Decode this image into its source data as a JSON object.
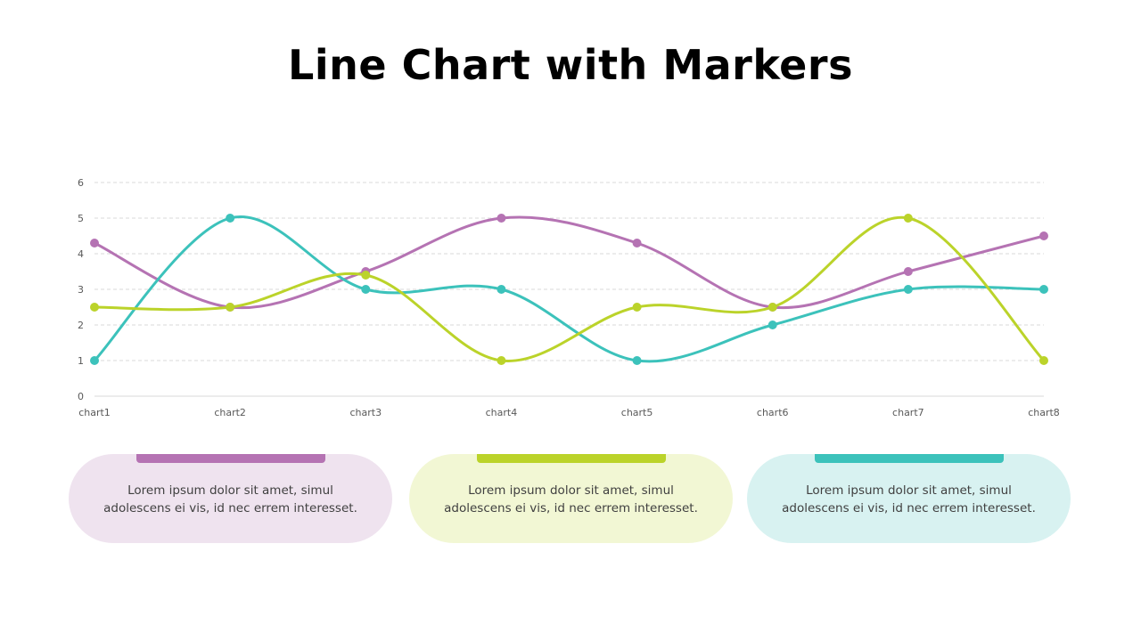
{
  "title": "Line Chart with Markers",
  "chart_data": {
    "type": "line",
    "title": "Line Chart with Markers",
    "categories": [
      "chart1",
      "chart2",
      "chart3",
      "chart4",
      "chart5",
      "chart6",
      "chart7",
      "chart8"
    ],
    "ylim": [
      0,
      6
    ],
    "yticks": [
      "0",
      "1",
      "2",
      "3",
      "4",
      "5",
      "6"
    ],
    "grid": true,
    "smooth": true,
    "markers": true,
    "series": [
      {
        "color": "#b573b3",
        "values": [
          4.3,
          2.5,
          3.5,
          5,
          4.3,
          2.5,
          3.5,
          4.5
        ]
      },
      {
        "color": "#3cc2bb",
        "values": [
          1,
          5,
          3,
          3,
          1,
          2,
          3,
          3
        ]
      },
      {
        "color": "#bbd32a",
        "values": [
          2.5,
          2.5,
          3.4,
          1,
          2.5,
          2.5,
          5,
          1
        ]
      }
    ]
  },
  "cards": [
    {
      "text_line1": "Lorem  ipsum dolor  sit amet,  simul",
      "text_line2": "adolescens ei vis, id nec errem  interesset.",
      "bg": "#efe3ef",
      "accent": "#b573b3"
    },
    {
      "text_line1": "Lorem  ipsum dolor  sit amet,  simul",
      "text_line2": "adolescens ei vis, id nec errem  interesset.",
      "bg": "#f2f7d4",
      "accent": "#bbd32a"
    },
    {
      "text_line1": "Lorem  ipsum dolor  sit amet,  simul",
      "text_line2": "adolescens ei vis, id nec errem  interesset.",
      "bg": "#d8f2f1",
      "accent": "#3cc2bb"
    }
  ]
}
